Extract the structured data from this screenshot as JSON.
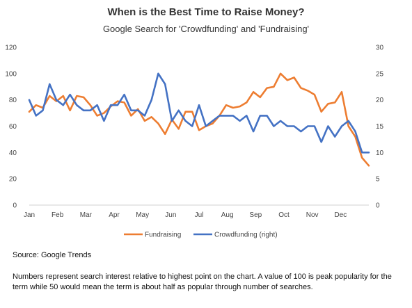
{
  "chart_data": {
    "type": "line",
    "title": "When is the Best Time to Raise Money?",
    "subtitle": "Google Search for 'Crowdfunding' and 'Fundraising'",
    "x_tick_labels": [
      "Jan",
      "Feb",
      "Mar",
      "Apr",
      "May",
      "Jun",
      "Jul",
      "Aug",
      "Sep",
      "Oct",
      "Nov",
      "Dec"
    ],
    "y_left": {
      "range": [
        0,
        120
      ],
      "ticks": [
        "0",
        "20",
        "40",
        "60",
        "80",
        "100",
        "120"
      ]
    },
    "y_right": {
      "range": [
        0,
        30
      ],
      "ticks": [
        "0",
        "5",
        "10",
        "15",
        "20",
        "25",
        "30"
      ]
    },
    "grid": "none",
    "legend_position": "bottom",
    "series": [
      {
        "name": "Fundraising",
        "axis": "left",
        "color": "#ED7D31",
        "values": [
          71,
          76,
          74,
          83,
          79,
          83,
          72,
          83,
          82,
          76,
          68,
          70,
          75,
          79,
          78,
          68,
          73,
          64,
          67,
          62,
          54,
          65,
          58,
          71,
          71,
          57,
          60,
          62,
          68,
          76,
          74,
          75,
          78,
          86,
          82,
          89,
          90,
          100,
          95,
          97,
          89,
          87,
          84,
          71,
          77,
          78,
          86,
          60,
          52,
          36,
          30
        ]
      },
      {
        "name": "Crowdfunding (right)",
        "axis": "right",
        "color": "#4472C4",
        "values": [
          20,
          17,
          18,
          23,
          20,
          19,
          21,
          19,
          18,
          18,
          19,
          16,
          19,
          19,
          21,
          18,
          18,
          17,
          20,
          25,
          23,
          16,
          18,
          16,
          15,
          19,
          15,
          16,
          17,
          17,
          17,
          16,
          17,
          14,
          17,
          17,
          15,
          16,
          15,
          15,
          14,
          15,
          15,
          12,
          15,
          13,
          15,
          16,
          14,
          10,
          10
        ]
      }
    ]
  },
  "source": "Source: Google Trends",
  "note": "Numbers represent search interest relative to highest point on the chart. A value of 100 is peak popularity for the term while 50 would mean the term is about half as popular through number of searches."
}
